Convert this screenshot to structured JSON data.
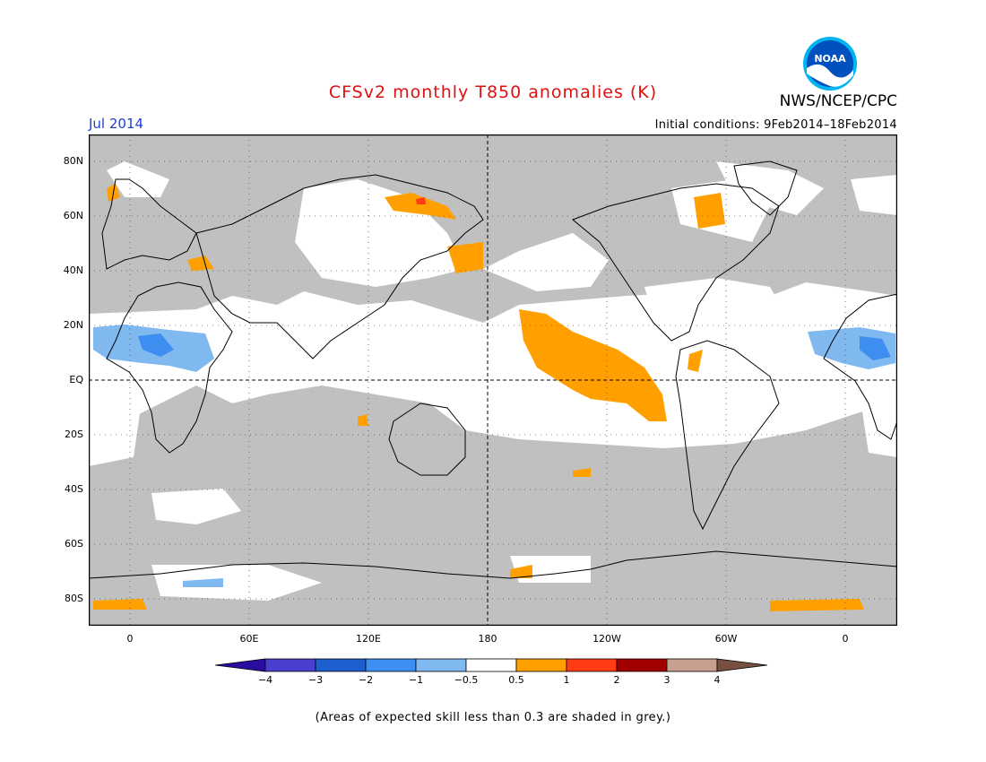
{
  "header": {
    "title": "CFSv2 monthly T850 anomalies (K)",
    "month": "Jul 2014",
    "initial_conditions": "Initial conditions: 9Feb2014–18Feb2014",
    "agency": "NWS/NCEP/CPC",
    "logo_text": "NOAA",
    "logo_icon": "noaa-logo-icon"
  },
  "axes": {
    "lat_labels": [
      "80N",
      "60N",
      "40N",
      "20N",
      "EQ",
      "20S",
      "40S",
      "60S",
      "80S"
    ],
    "lon_labels": [
      "0",
      "60E",
      "120E",
      "180",
      "120W",
      "60W",
      "0"
    ]
  },
  "legend": {
    "ticks": [
      "−4",
      "−3",
      "−2",
      "−1",
      "−0.5",
      "0.5",
      "1",
      "2",
      "3",
      "4"
    ],
    "colors": [
      "#2a0ca0",
      "#4a3fd0",
      "#1e5fd0",
      "#3d8ef0",
      "#80b8f0",
      "#ffffff",
      "#ffa000",
      "#ff3c14",
      "#a00000",
      "#c8a090",
      "#785040"
    ]
  },
  "colors": {
    "skill_grey": "#c0c0c0",
    "coast": "#000000",
    "title_red": "#e01010",
    "month_blue": "#1e3fd0"
  },
  "footnote": "(Areas of expected skill less than 0.3 are shaded in grey.)"
}
